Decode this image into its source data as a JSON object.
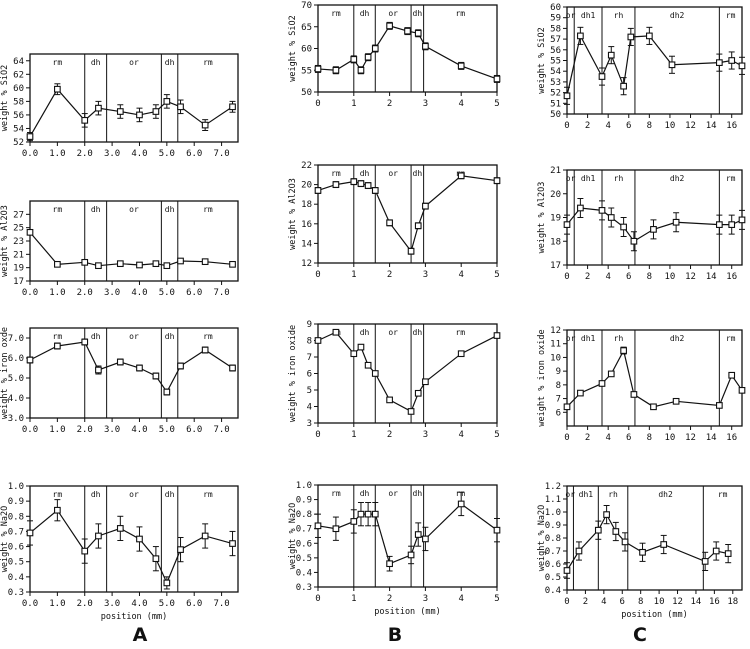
{
  "chart_data": [
    {
      "type": "line",
      "id": "A-SiO2",
      "ylabel": "weight % SiO2",
      "xlabel": "",
      "xlim": [
        0,
        7.6
      ],
      "ylim": [
        52,
        65
      ],
      "xticks": [
        0.0,
        1.0,
        2.0,
        3.0,
        4.0,
        5.0,
        6.0,
        7.0
      ],
      "xtick_labels": [
        "0.0",
        "1.0",
        "2.0",
        "3.0",
        "4.0",
        "5.0",
        "6.0",
        "7.0"
      ],
      "yticks": [
        52,
        54,
        56,
        58,
        60,
        62,
        64
      ],
      "ytick_labels": [
        "52",
        "54",
        "56",
        "58",
        "60",
        "62",
        "64"
      ],
      "zone_bounds": [
        2.0,
        2.8,
        4.8,
        5.4
      ],
      "zones": [
        "rm",
        "dh",
        "or",
        "dh",
        "rm"
      ],
      "x": [
        0.0,
        1.0,
        2.0,
        2.5,
        3.3,
        4.0,
        4.6,
        5.0,
        5.5,
        6.4,
        7.4
      ],
      "y": [
        52.8,
        59.8,
        55.2,
        57.0,
        56.5,
        56.0,
        56.5,
        58.0,
        57.2,
        54.5,
        57.2
      ],
      "err": [
        0.6,
        0.8,
        1.0,
        1.0,
        1.0,
        1.0,
        1.0,
        1.0,
        1.0,
        0.8,
        0.8
      ]
    },
    {
      "type": "line",
      "id": "A-Al2O3",
      "ylabel": "weight % Al2O3",
      "xlabel": "",
      "xlim": [
        0,
        7.6
      ],
      "ylim": [
        17,
        29
      ],
      "xticks": [
        0.0,
        1.0,
        2.0,
        3.0,
        4.0,
        5.0,
        6.0,
        7.0
      ],
      "xtick_labels": [
        "0.0",
        "1.0",
        "2.0",
        "3.0",
        "4.0",
        "5.0",
        "6.0",
        "7.0"
      ],
      "yticks": [
        17,
        19,
        21,
        23,
        25,
        27
      ],
      "ytick_labels": [
        "17",
        "19",
        "21",
        "23",
        "25",
        "27"
      ],
      "zone_bounds": [
        2.0,
        2.8,
        4.8,
        5.4
      ],
      "zones": [
        "rm",
        "dh",
        "or",
        "dh",
        "rm"
      ],
      "x": [
        0.0,
        1.0,
        2.0,
        2.5,
        3.3,
        4.0,
        4.6,
        5.0,
        5.5,
        6.4,
        7.4
      ],
      "y": [
        24.3,
        19.5,
        19.8,
        19.3,
        19.6,
        19.4,
        19.6,
        19.3,
        20.0,
        19.9,
        19.5
      ],
      "err": [
        0.3,
        0.3,
        0.3,
        0.3,
        0.3,
        0.3,
        0.3,
        0.3,
        0.3,
        0.3,
        0.3
      ]
    },
    {
      "type": "line",
      "id": "A-FeO",
      "ylabel": "weight % iron oxde",
      "xlabel": "",
      "xlim": [
        0,
        7.6
      ],
      "ylim": [
        3,
        7.5
      ],
      "xticks": [
        0.0,
        1.0,
        2.0,
        3.0,
        4.0,
        5.0,
        6.0,
        7.0
      ],
      "xtick_labels": [
        "0.0",
        "1.0",
        "2.0",
        "3.0",
        "4.0",
        "5.0",
        "6.0",
        "7.0"
      ],
      "yticks": [
        3.0,
        4.0,
        5.0,
        6.0,
        7.0
      ],
      "ytick_labels": [
        "3.0",
        "4.0",
        "5.0",
        "6.0",
        "7.0"
      ],
      "zone_bounds": [
        2.0,
        2.8,
        4.8,
        5.4
      ],
      "zones": [
        "rm",
        "dh",
        "or",
        "dh",
        "rm"
      ],
      "x": [
        0.0,
        1.0,
        2.0,
        2.5,
        3.3,
        4.0,
        4.6,
        5.0,
        5.5,
        6.4,
        7.4
      ],
      "y": [
        5.9,
        6.6,
        6.8,
        5.4,
        5.8,
        5.5,
        5.1,
        4.3,
        5.6,
        6.4,
        5.5
      ],
      "err": [
        0.15,
        0.15,
        0.15,
        0.2,
        0.15,
        0.15,
        0.15,
        0.15,
        0.15,
        0.15,
        0.15
      ]
    },
    {
      "type": "line",
      "id": "A-Na2O",
      "ylabel": "weight % Na2O",
      "xlabel": "position (mm)",
      "xlim": [
        0,
        7.6
      ],
      "ylim": [
        0.3,
        1.0
      ],
      "xticks": [
        0.0,
        1.0,
        2.0,
        3.0,
        4.0,
        5.0,
        6.0,
        7.0
      ],
      "xtick_labels": [
        "0.0",
        "1.0",
        "2.0",
        "3.0",
        "4.0",
        "5.0",
        "6.0",
        "7.0"
      ],
      "yticks": [
        0.3,
        0.4,
        0.5,
        0.6,
        0.7,
        0.8,
        0.9,
        1.0
      ],
      "ytick_labels": [
        "0.3",
        "0.4",
        "0.5",
        "0.6",
        "0.7",
        "0.8",
        "0.9",
        "1.0"
      ],
      "zone_bounds": [
        2.0,
        2.8,
        4.8,
        5.4
      ],
      "zones": [
        "rm",
        "dh",
        "or",
        "dh",
        "rm"
      ],
      "x": [
        0.0,
        1.0,
        2.0,
        2.5,
        3.3,
        4.0,
        4.6,
        5.0,
        5.5,
        6.4,
        7.4
      ],
      "y": [
        0.69,
        0.84,
        0.57,
        0.67,
        0.72,
        0.65,
        0.52,
        0.36,
        0.58,
        0.67,
        0.62
      ],
      "err": [
        0.08,
        0.07,
        0.08,
        0.08,
        0.08,
        0.08,
        0.08,
        0.04,
        0.08,
        0.08,
        0.08
      ]
    },
    {
      "type": "line",
      "id": "B-SiO2",
      "ylabel": "weight % SiO2",
      "xlabel": "",
      "xlim": [
        0,
        5
      ],
      "ylim": [
        50,
        70
      ],
      "xticks": [
        0,
        1,
        2,
        3,
        4,
        5
      ],
      "xtick_labels": [
        "0",
        "1",
        "2",
        "3",
        "4",
        "5"
      ],
      "yticks": [
        50,
        55,
        60,
        65,
        70
      ],
      "ytick_labels": [
        "50",
        "55",
        "60",
        "65",
        "70"
      ],
      "zone_bounds": [
        1.0,
        1.6,
        2.6,
        2.95
      ],
      "zones": [
        "rm",
        "dh",
        "or",
        "dh",
        "rm"
      ],
      "x": [
        0.0,
        0.5,
        1.0,
        1.2,
        1.4,
        1.6,
        2.0,
        2.5,
        2.8,
        3.0,
        4.0,
        5.0
      ],
      "y": [
        55.3,
        55.0,
        57.5,
        55.0,
        58.0,
        60.0,
        65.2,
        64.0,
        63.5,
        60.5,
        56.0,
        53.0
      ],
      "err": [
        0.8,
        0.8,
        0.8,
        0.8,
        0.8,
        0.8,
        0.8,
        0.8,
        0.8,
        0.8,
        0.8,
        0.8
      ]
    },
    {
      "type": "line",
      "id": "B-Al2O3",
      "ylabel": "weight % Al2O3",
      "xlabel": "",
      "xlim": [
        0,
        5
      ],
      "ylim": [
        12,
        22
      ],
      "xticks": [
        0,
        1,
        2,
        3,
        4,
        5
      ],
      "xtick_labels": [
        "0",
        "1",
        "2",
        "3",
        "4",
        "5"
      ],
      "yticks": [
        12,
        14,
        16,
        18,
        20,
        22
      ],
      "ytick_labels": [
        "12",
        "14",
        "16",
        "18",
        "20",
        "22"
      ],
      "zone_bounds": [
        1.0,
        1.6,
        2.6,
        2.95
      ],
      "zones": [
        "rm",
        "dh",
        "or",
        "dh",
        "rm"
      ],
      "x": [
        0.0,
        0.5,
        1.0,
        1.2,
        1.4,
        1.6,
        2.0,
        2.6,
        2.8,
        3.0,
        4.0,
        5.0
      ],
      "y": [
        19.4,
        20.0,
        20.3,
        20.1,
        19.9,
        19.4,
        16.1,
        13.2,
        15.8,
        17.8,
        20.9,
        20.4
      ],
      "err": [
        0.3,
        0.3,
        0.3,
        0.3,
        0.3,
        0.3,
        0.3,
        0.3,
        0.3,
        0.3,
        0.3,
        0.3
      ]
    },
    {
      "type": "line",
      "id": "B-FeO",
      "ylabel": "weight % iron oxide",
      "xlabel": "",
      "xlim": [
        0,
        5
      ],
      "ylim": [
        3,
        9
      ],
      "xticks": [
        0,
        1,
        2,
        3,
        4,
        5
      ],
      "xtick_labels": [
        "0",
        "1",
        "2",
        "3",
        "4",
        "5"
      ],
      "yticks": [
        3,
        4,
        5,
        6,
        7,
        8,
        9
      ],
      "ytick_labels": [
        "3",
        "4",
        "5",
        "6",
        "7",
        "8",
        "9"
      ],
      "zone_bounds": [
        1.0,
        1.6,
        2.6,
        2.95
      ],
      "zones": [
        "rm",
        "dh",
        "or",
        "dh",
        "rm"
      ],
      "x": [
        0.0,
        0.5,
        1.0,
        1.2,
        1.4,
        1.6,
        2.0,
        2.6,
        2.8,
        3.0,
        4.0,
        5.0
      ],
      "y": [
        8.0,
        8.5,
        7.2,
        7.6,
        6.5,
        6.0,
        4.4,
        3.7,
        4.8,
        5.5,
        7.2,
        8.3
      ],
      "err": [
        0.15,
        0.15,
        0.15,
        0.15,
        0.15,
        0.15,
        0.15,
        0.15,
        0.15,
        0.15,
        0.15,
        0.15
      ]
    },
    {
      "type": "line",
      "id": "B-Na2O",
      "ylabel": "weight % Na2O",
      "xlabel": "position (mm)",
      "xlim": [
        0,
        5
      ],
      "ylim": [
        0.3,
        1.0
      ],
      "xticks": [
        0,
        1,
        2,
        3,
        4,
        5
      ],
      "xtick_labels": [
        "0",
        "1",
        "2",
        "3",
        "4",
        "5"
      ],
      "yticks": [
        0.3,
        0.4,
        0.5,
        0.6,
        0.7,
        0.8,
        0.9,
        1.0
      ],
      "ytick_labels": [
        "0.3",
        "0.4",
        "0.5",
        "0.6",
        "0.7",
        "0.8",
        "0.9",
        "1.0"
      ],
      "zone_bounds": [
        1.0,
        1.6,
        2.6,
        2.95
      ],
      "zones": [
        "rm",
        "dh",
        "or",
        "dh",
        "rm"
      ],
      "x": [
        0.0,
        0.5,
        1.0,
        1.2,
        1.4,
        1.6,
        2.0,
        2.6,
        2.8,
        3.0,
        4.0,
        5.0
      ],
      "y": [
        0.72,
        0.7,
        0.75,
        0.8,
        0.8,
        0.8,
        0.46,
        0.52,
        0.66,
        0.63,
        0.87,
        0.69
      ],
      "err": [
        0.08,
        0.08,
        0.08,
        0.08,
        0.08,
        0.08,
        0.05,
        0.06,
        0.08,
        0.08,
        0.08,
        0.08
      ]
    },
    {
      "type": "line",
      "id": "C-SiO2",
      "ylabel": "weight % SiO2",
      "xlabel": "",
      "xlim": [
        0,
        17
      ],
      "ylim": [
        50,
        60
      ],
      "xticks": [
        0,
        2,
        4,
        6,
        8,
        10,
        12,
        14,
        16
      ],
      "xtick_labels": [
        "0",
        "2",
        "4",
        "6",
        "8",
        "10",
        "12",
        "14",
        "16"
      ],
      "yticks": [
        50,
        51,
        52,
        53,
        54,
        55,
        56,
        57,
        58,
        59,
        60
      ],
      "ytick_labels": [
        "50",
        "51",
        "52",
        "53",
        "54",
        "55",
        "56",
        "57",
        "58",
        "59",
        "60"
      ],
      "zone_bounds": [
        0.7,
        3.4,
        6.6,
        14.8
      ],
      "zones": [
        "or",
        "dh1",
        "rh",
        "dh2",
        "rm"
      ],
      "x": [
        0.0,
        1.3,
        3.4,
        4.3,
        5.5,
        6.2,
        8.0,
        10.2,
        14.8,
        16.0,
        17.0
      ],
      "y": [
        51.7,
        57.3,
        53.5,
        55.5,
        52.6,
        57.2,
        57.3,
        54.6,
        54.8,
        55.0,
        54.5
      ],
      "err": [
        0.8,
        0.8,
        0.8,
        0.8,
        0.8,
        0.8,
        0.8,
        0.8,
        0.8,
        0.8,
        0.8
      ]
    },
    {
      "type": "line",
      "id": "C-Al2O3",
      "ylabel": "weight % Al2O3",
      "xlabel": "",
      "xlim": [
        0,
        17
      ],
      "ylim": [
        17,
        21
      ],
      "xticks": [
        0,
        2,
        4,
        6,
        8,
        10,
        12,
        14,
        16
      ],
      "xtick_labels": [
        "0",
        "2",
        "4",
        "6",
        "8",
        "10",
        "12",
        "14",
        "16"
      ],
      "yticks": [
        17,
        18,
        19,
        20,
        21
      ],
      "ytick_labels": [
        "17",
        "18",
        "19",
        "20",
        "21"
      ],
      "zone_bounds": [
        0.7,
        3.4,
        6.6,
        14.8
      ],
      "zones": [
        "or",
        "dh1",
        "rh",
        "dh2",
        "rm"
      ],
      "x": [
        0.0,
        1.3,
        3.4,
        4.3,
        5.5,
        6.5,
        8.4,
        10.6,
        14.8,
        16.0,
        17.0
      ],
      "y": [
        18.7,
        19.4,
        19.3,
        19.0,
        18.6,
        18.0,
        18.5,
        18.8,
        18.7,
        18.7,
        18.9
      ],
      "err": [
        0.4,
        0.4,
        0.4,
        0.4,
        0.4,
        0.4,
        0.4,
        0.4,
        0.4,
        0.4,
        0.4
      ]
    },
    {
      "type": "line",
      "id": "C-FeO",
      "ylabel": "weight % iron oxide",
      "xlabel": "",
      "xlim": [
        0,
        17
      ],
      "ylim": [
        5,
        12
      ],
      "xticks": [
        0,
        2,
        4,
        6,
        8,
        10,
        12,
        14,
        16
      ],
      "xtick_labels": [
        "0",
        "2",
        "4",
        "6",
        "8",
        "10",
        "12",
        "14",
        "16"
      ],
      "yticks": [
        6,
        7,
        8,
        9,
        10,
        11,
        12
      ],
      "ytick_labels": [
        "6",
        "7",
        "8",
        "9",
        "10",
        "11",
        "12"
      ],
      "zone_bounds": [
        0.7,
        3.4,
        6.6,
        14.8
      ],
      "zones": [
        "or",
        "dh1",
        "rh",
        "dh2",
        "rm"
      ],
      "x": [
        0.0,
        1.3,
        3.4,
        4.3,
        5.5,
        6.5,
        8.4,
        10.6,
        14.8,
        16.0,
        17.0
      ],
      "y": [
        6.4,
        7.4,
        8.1,
        8.8,
        10.5,
        7.3,
        6.4,
        6.8,
        6.5,
        8.7,
        7.6
      ],
      "err": [
        0.15,
        0.15,
        0.15,
        0.15,
        0.25,
        0.15,
        0.15,
        0.15,
        0.15,
        0.15,
        0.15
      ]
    },
    {
      "type": "line",
      "id": "C-Na2O",
      "ylabel": "weight % Na2O",
      "xlabel": "position (mm)",
      "xlim": [
        0,
        19
      ],
      "ylim": [
        0.4,
        1.2
      ],
      "xticks": [
        0,
        2,
        4,
        6,
        8,
        10,
        12,
        14,
        16,
        18
      ],
      "xtick_labels": [
        "0",
        "2",
        "4",
        "6",
        "8",
        "10",
        "12",
        "14",
        "16",
        "18"
      ],
      "yticks": [
        0.4,
        0.5,
        0.6,
        0.7,
        0.8,
        0.9,
        1.0,
        1.1,
        1.2
      ],
      "ytick_labels": [
        "0.4",
        "0.5",
        "0.6",
        "0.7",
        "0.8",
        "0.9",
        "1.0",
        "1.1",
        "1.2"
      ],
      "zone_bounds": [
        0.7,
        3.4,
        6.6,
        14.8
      ],
      "zones": [
        "or",
        "dh1",
        "rh",
        "dh2",
        "rm"
      ],
      "x": [
        0.0,
        1.3,
        3.4,
        4.3,
        5.3,
        6.3,
        8.2,
        10.5,
        15.0,
        16.2,
        17.5
      ],
      "y": [
        0.55,
        0.7,
        0.86,
        0.98,
        0.85,
        0.77,
        0.69,
        0.75,
        0.62,
        0.7,
        0.68
      ],
      "err": [
        0.06,
        0.07,
        0.07,
        0.07,
        0.07,
        0.07,
        0.07,
        0.07,
        0.07,
        0.07,
        0.07
      ]
    }
  ],
  "panel_letters": [
    "A",
    "B",
    "C"
  ]
}
